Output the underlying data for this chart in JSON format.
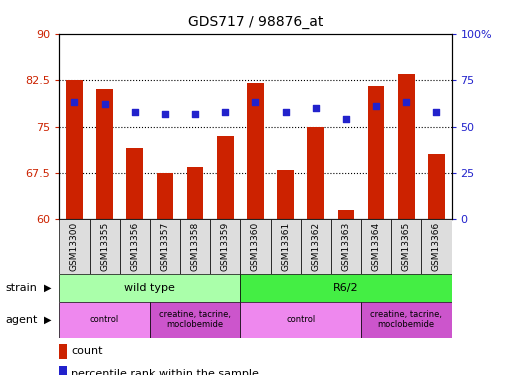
{
  "title": "GDS717 / 98876_at",
  "samples": [
    "GSM13300",
    "GSM13355",
    "GSM13356",
    "GSM13357",
    "GSM13358",
    "GSM13359",
    "GSM13360",
    "GSM13361",
    "GSM13362",
    "GSM13363",
    "GSM13364",
    "GSM13365",
    "GSM13366"
  ],
  "counts": [
    82.5,
    81.0,
    71.5,
    67.5,
    68.5,
    73.5,
    82.0,
    68.0,
    75.0,
    61.5,
    81.5,
    83.5,
    70.5
  ],
  "percentiles": [
    63,
    62,
    58,
    57,
    57,
    58,
    63,
    58,
    60,
    54,
    61,
    63,
    58
  ],
  "y_min": 60,
  "y_max": 90,
  "y_ticks": [
    60,
    67.5,
    75,
    82.5,
    90
  ],
  "y_tick_labels": [
    "60",
    "67.5",
    "75",
    "82.5",
    "90"
  ],
  "y2_ticks": [
    0,
    25,
    50,
    75,
    100
  ],
  "y2_tick_labels": [
    "0",
    "25",
    "50",
    "75",
    "100%"
  ],
  "bar_color": "#cc2200",
  "dot_color": "#2222cc",
  "grid_color": "#000000",
  "bg_color": "#ffffff",
  "strain_wt_color": "#aaffaa",
  "strain_r62_color": "#44ee44",
  "agent_control_color": "#ee88ee",
  "agent_treat_color": "#cc55cc",
  "strain_groups": [
    {
      "label": "wild type",
      "start": 0,
      "end": 6
    },
    {
      "label": "R6/2",
      "start": 6,
      "end": 13
    }
  ],
  "agent_groups": [
    {
      "label": "control",
      "start": 0,
      "end": 3
    },
    {
      "label": "creatine, tacrine,\nmoclobemide",
      "start": 3,
      "end": 6
    },
    {
      "label": "control",
      "start": 6,
      "end": 10
    },
    {
      "label": "creatine, tacrine,\nmoclobemide",
      "start": 10,
      "end": 13
    }
  ],
  "legend_count_label": "count",
  "legend_pct_label": "percentile rank within the sample",
  "strain_label": "strain",
  "agent_label": "agent",
  "bar_width": 0.55
}
